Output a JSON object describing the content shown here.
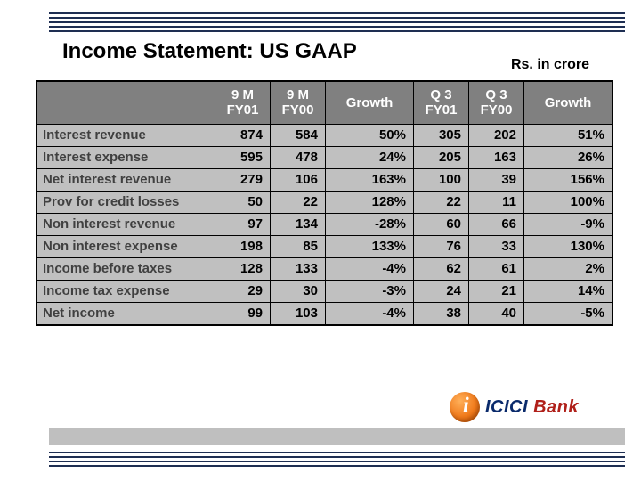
{
  "title": "Income Statement: US GAAP",
  "unit_label": "Rs. in crore",
  "decor": {
    "rule_color": "#1e2e52",
    "rule_count": 5,
    "footer_bar_color": "#bfbfbf"
  },
  "logo": {
    "name_primary": "ICICI",
    "name_secondary": " Bank",
    "badge_color": "#f07a1b",
    "primary_color": "#0a2a6b",
    "secondary_color": "#b0201a"
  },
  "table": {
    "header_bg": "#808080",
    "header_fg": "#ffffff",
    "cell_bg": "#c0c0c0",
    "cell_fg": "#000000",
    "label_fg": "#404040",
    "border_color": "#000000",
    "columns": [
      {
        "key": "label",
        "header_line1": "",
        "header_line2": "",
        "class": "col-label"
      },
      {
        "key": "m9_fy01",
        "header_line1": "9 M",
        "header_line2": "FY01",
        "class": "col-narrow"
      },
      {
        "key": "m9_fy00",
        "header_line1": "9 M",
        "header_line2": "FY00",
        "class": "col-narrow"
      },
      {
        "key": "growth9m",
        "header_line1": "Growth",
        "header_line2": "",
        "class": "col-growth"
      },
      {
        "key": "q3_fy01",
        "header_line1": "Q 3",
        "header_line2": "FY01",
        "class": "col-narrow"
      },
      {
        "key": "q3_fy00",
        "header_line1": "Q 3",
        "header_line2": "FY00",
        "class": "col-narrow"
      },
      {
        "key": "growthq3",
        "header_line1": "Growth",
        "header_line2": "",
        "class": "col-growth"
      }
    ],
    "rows": [
      {
        "label": "Interest revenue",
        "m9_fy01": "874",
        "m9_fy00": "584",
        "growth9m": "50%",
        "q3_fy01": "305",
        "q3_fy00": "202",
        "growthq3": "51%"
      },
      {
        "label": "Interest expense",
        "m9_fy01": "595",
        "m9_fy00": "478",
        "growth9m": "24%",
        "q3_fy01": "205",
        "q3_fy00": "163",
        "growthq3": "26%"
      },
      {
        "label": "Net interest revenue",
        "m9_fy01": "279",
        "m9_fy00": "106",
        "growth9m": "163%",
        "q3_fy01": "100",
        "q3_fy00": "39",
        "growthq3": "156%"
      },
      {
        "label": "Prov for credit losses",
        "m9_fy01": "50",
        "m9_fy00": "22",
        "growth9m": "128%",
        "q3_fy01": "22",
        "q3_fy00": "11",
        "growthq3": "100%"
      },
      {
        "label": "Non interest revenue",
        "m9_fy01": "97",
        "m9_fy00": "134",
        "growth9m": "-28%",
        "q3_fy01": "60",
        "q3_fy00": "66",
        "growthq3": "-9%"
      },
      {
        "label": "Non interest expense",
        "m9_fy01": "198",
        "m9_fy00": "85",
        "growth9m": "133%",
        "q3_fy01": "76",
        "q3_fy00": "33",
        "growthq3": "130%"
      },
      {
        "label": "Income before taxes",
        "m9_fy01": "128",
        "m9_fy00": "133",
        "growth9m": "-4%",
        "q3_fy01": "62",
        "q3_fy00": "61",
        "growthq3": "2%"
      },
      {
        "label": "Income tax expense",
        "m9_fy01": "29",
        "m9_fy00": "30",
        "growth9m": "-3%",
        "q3_fy01": "24",
        "q3_fy00": "21",
        "growthq3": "14%"
      },
      {
        "label": "Net income",
        "m9_fy01": "99",
        "m9_fy00": "103",
        "growth9m": "-4%",
        "q3_fy01": "38",
        "q3_fy00": "40",
        "growthq3": "-5%"
      }
    ]
  }
}
